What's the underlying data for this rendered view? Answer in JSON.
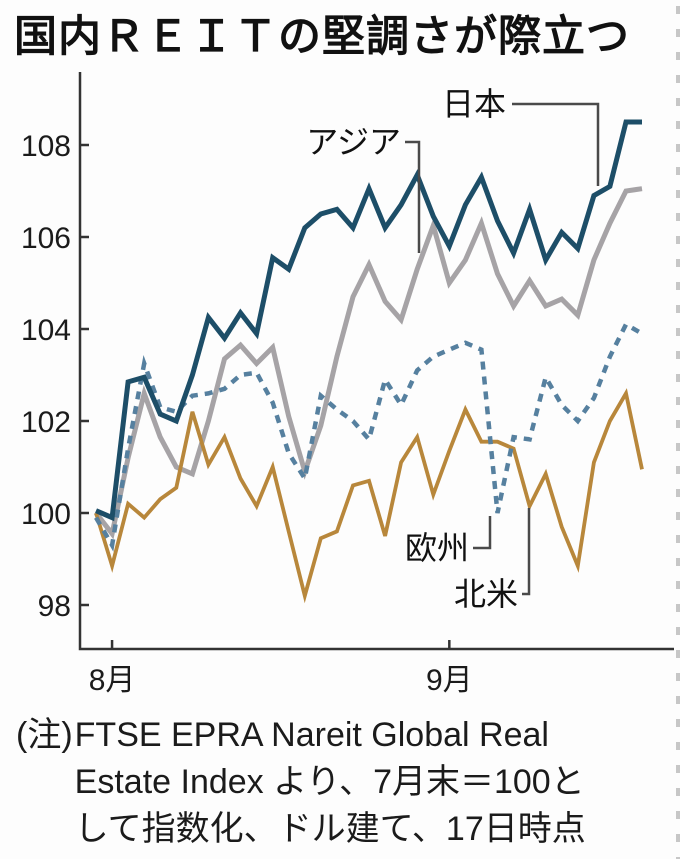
{
  "title": "国内ＲＥＩＴの堅調さが際立つ",
  "note": {
    "prefix": "(注)",
    "lines": [
      "FTSE EPRA Nareit Global Real",
      "Estate Index より、7月末＝100と",
      "して指数化、ドル建て、17日時点"
    ]
  },
  "chart_data": {
    "type": "line",
    "title": "国内ＲＥＩＴの堅調さが際立つ",
    "index_base_note": "7月末＝100",
    "x_axis": {
      "tick_labels": [
        "8月",
        "9月"
      ],
      "tick_point_indices": [
        1,
        22
      ],
      "points": 35
    },
    "y_axis": {
      "ticks": [
        98,
        100,
        102,
        104,
        106,
        108
      ],
      "range": [
        97.05,
        109.6
      ],
      "grid": false
    },
    "legend_position": "inline-annotations",
    "series": [
      {
        "id": "asia",
        "name": "アジア",
        "color": "#a6a3a6",
        "style": "solid",
        "values": [
          100.0,
          99.55,
          101.2,
          102.6,
          101.65,
          101.0,
          100.85,
          102.0,
          103.35,
          103.65,
          103.25,
          103.6,
          102.1,
          100.9,
          101.9,
          103.4,
          104.7,
          105.4,
          104.6,
          104.2,
          105.3,
          106.25,
          105.0,
          105.5,
          106.3,
          105.2,
          104.5,
          105.05,
          104.5,
          104.65,
          104.3,
          105.5,
          106.3,
          107.0,
          107.05
        ]
      },
      {
        "id": "north-america",
        "name": "北米",
        "color": "#b8873b",
        "style": "solid",
        "values": [
          100.0,
          98.85,
          100.2,
          99.9,
          100.3,
          100.55,
          102.2,
          101.05,
          101.65,
          100.75,
          100.15,
          101.0,
          99.6,
          98.2,
          99.45,
          99.6,
          100.6,
          100.7,
          99.5,
          101.1,
          101.65,
          100.4,
          101.35,
          102.25,
          101.55,
          101.55,
          101.4,
          100.15,
          100.85,
          99.7,
          98.85,
          101.1,
          102.0,
          102.6,
          100.95
        ]
      },
      {
        "id": "europe",
        "name": "欧州",
        "color": "#56809f",
        "style": "dashed",
        "values": [
          99.9,
          99.3,
          101.4,
          103.25,
          102.3,
          102.2,
          102.55,
          102.6,
          102.7,
          103.0,
          103.05,
          102.4,
          101.3,
          100.75,
          102.55,
          102.25,
          102.0,
          101.6,
          102.9,
          102.35,
          103.1,
          103.4,
          103.55,
          103.7,
          103.55,
          100.0,
          101.65,
          101.6,
          102.95,
          102.35,
          102.0,
          102.5,
          103.4,
          104.1,
          103.9
        ]
      },
      {
        "id": "japan",
        "name": "日本",
        "color": "#1d4e68",
        "style": "solid",
        "values": [
          100.05,
          99.9,
          102.85,
          102.95,
          102.15,
          102.0,
          103.0,
          104.25,
          103.8,
          104.35,
          103.9,
          105.55,
          105.3,
          106.2,
          106.5,
          106.6,
          106.2,
          107.05,
          106.2,
          106.7,
          107.35,
          106.45,
          105.8,
          106.7,
          107.3,
          106.35,
          105.65,
          106.6,
          105.5,
          106.1,
          105.75,
          106.9,
          107.1,
          108.5,
          108.5
        ]
      }
    ]
  }
}
